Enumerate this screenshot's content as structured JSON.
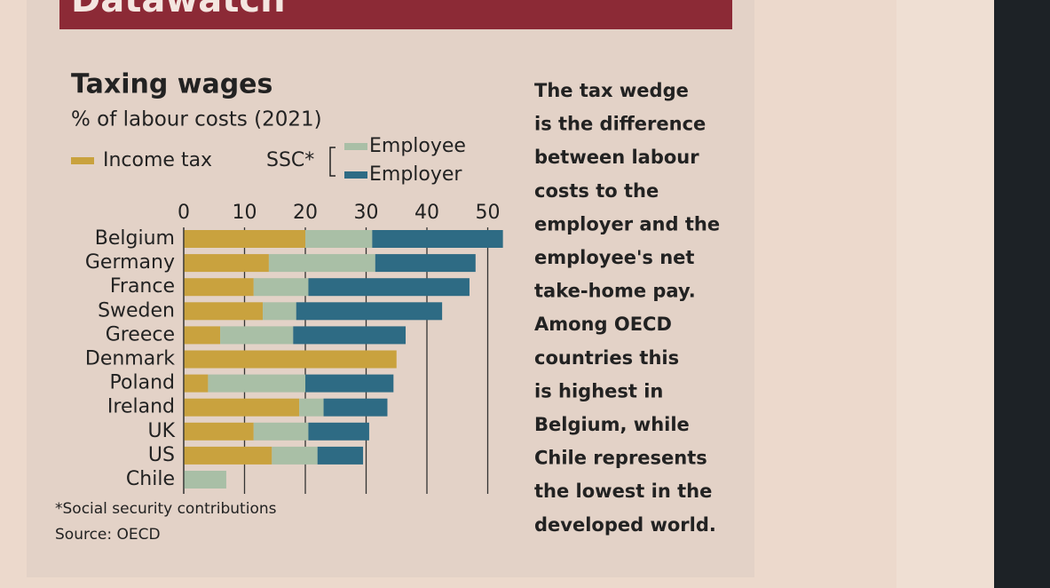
{
  "header": {
    "title": "Datawatch"
  },
  "chart_data": {
    "type": "bar",
    "orientation": "horizontal",
    "stacked": true,
    "title": "Taxing wages",
    "subtitle": "% of labour costs (2021)",
    "legend_group": "SSC*",
    "categories": [
      "Belgium",
      "Germany",
      "France",
      "Sweden",
      "Greece",
      "Denmark",
      "Poland",
      "Ireland",
      "UK",
      "US",
      "Chile"
    ],
    "series": [
      {
        "name": "Income tax",
        "color": "#c9a23e",
        "values": [
          20,
          14,
          11.5,
          13,
          6,
          35,
          4,
          19,
          11.5,
          14.5,
          0
        ]
      },
      {
        "name": "Employee",
        "color": "#a9bfa6",
        "group": "SSC*",
        "values": [
          11,
          17.5,
          9,
          5.5,
          12,
          0,
          16,
          4,
          9,
          7.5,
          7
        ]
      },
      {
        "name": "Employer",
        "color": "#2e6b84",
        "group": "SSC*",
        "values": [
          21.5,
          16.5,
          26.5,
          24,
          18.5,
          0,
          14.5,
          10.5,
          10,
          7.5,
          0
        ]
      }
    ],
    "xlim": [
      0,
      53
    ],
    "xticks": [
      0,
      10,
      20,
      30,
      40,
      50
    ],
    "grid": true,
    "footnote": "*Social security contributions",
    "source": "Source: OECD"
  },
  "sidebar": {
    "lines": [
      "The tax wedge",
      "is the difference",
      "between labour",
      "costs to the",
      "employer and the",
      "employee's net",
      "take-home pay.",
      "Among OECD",
      "countries this",
      "is highest in",
      "Belgium, while",
      "Chile represents",
      "the lowest in the",
      "developed world."
    ]
  }
}
